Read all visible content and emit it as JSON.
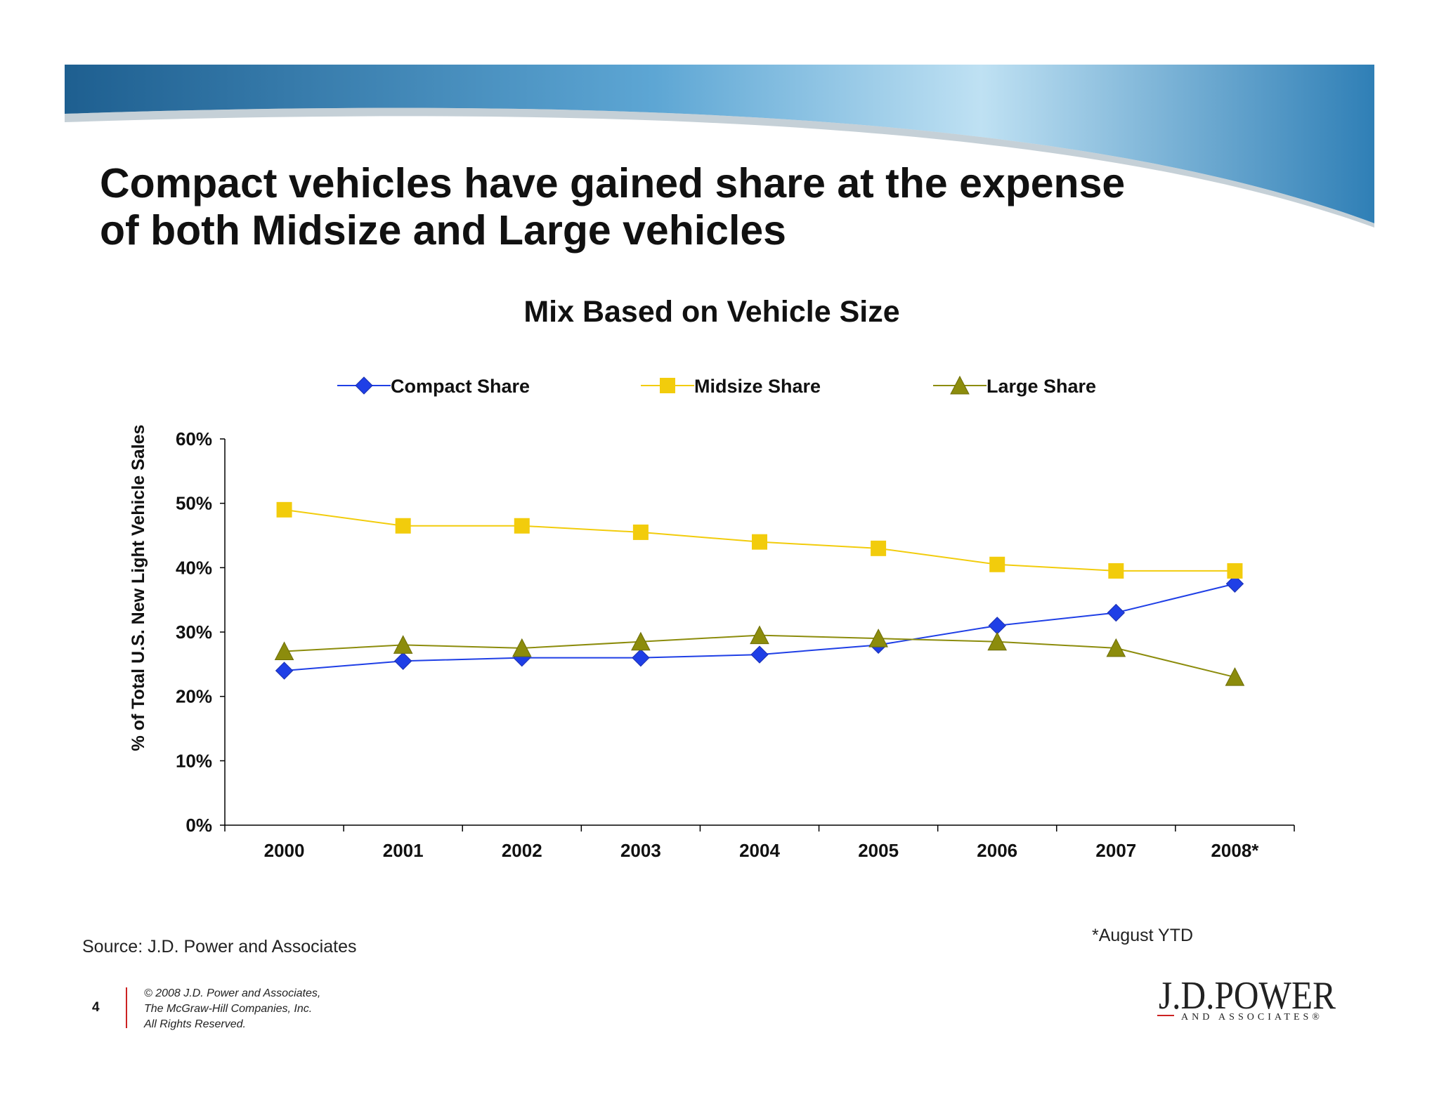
{
  "slide": {
    "title_line1": "Compact vehicles have gained share at the expense",
    "title_line2": "of both Midsize and Large vehicles",
    "source": "Source: J.D. Power and Associates",
    "footnote": "*August YTD",
    "page_number": "4",
    "copyright_line1": "© 2008 J.D. Power and Associates,",
    "copyright_line2": "The McGraw-Hill Companies, Inc.",
    "copyright_line3": "All Rights Reserved.",
    "logo_main": "J.D.POWER",
    "logo_sub": "AND ASSOCIATES®"
  },
  "chart_data": {
    "type": "line",
    "title": "Mix Based on Vehicle Size",
    "xlabel": "",
    "ylabel": "% of Total U.S. New Light Vehicle Sales",
    "categories": [
      "2000",
      "2001",
      "2002",
      "2003",
      "2004",
      "2005",
      "2006",
      "2007",
      "2008*"
    ],
    "ylim": [
      0,
      60
    ],
    "yticks": [
      0,
      10,
      20,
      30,
      40,
      50,
      60
    ],
    "ytick_labels": [
      "0%",
      "10%",
      "20%",
      "30%",
      "40%",
      "50%",
      "60%"
    ],
    "grid": false,
    "legend_position": "top",
    "series": [
      {
        "name": "Compact Share",
        "color": "#1f3fe6",
        "marker": "diamond",
        "values": [
          24,
          25.5,
          26,
          26,
          26.5,
          28,
          31,
          33,
          37.5
        ]
      },
      {
        "name": "Midsize Share",
        "color": "#f2cc0c",
        "marker": "square",
        "values": [
          49,
          46.5,
          46.5,
          45.5,
          44,
          43,
          40.5,
          39.5,
          39.5
        ]
      },
      {
        "name": "Large Share",
        "color": "#8c8c0c",
        "marker": "triangle",
        "values": [
          27,
          28,
          27.5,
          28.5,
          29.5,
          29,
          28.5,
          27.5,
          23
        ]
      }
    ]
  }
}
